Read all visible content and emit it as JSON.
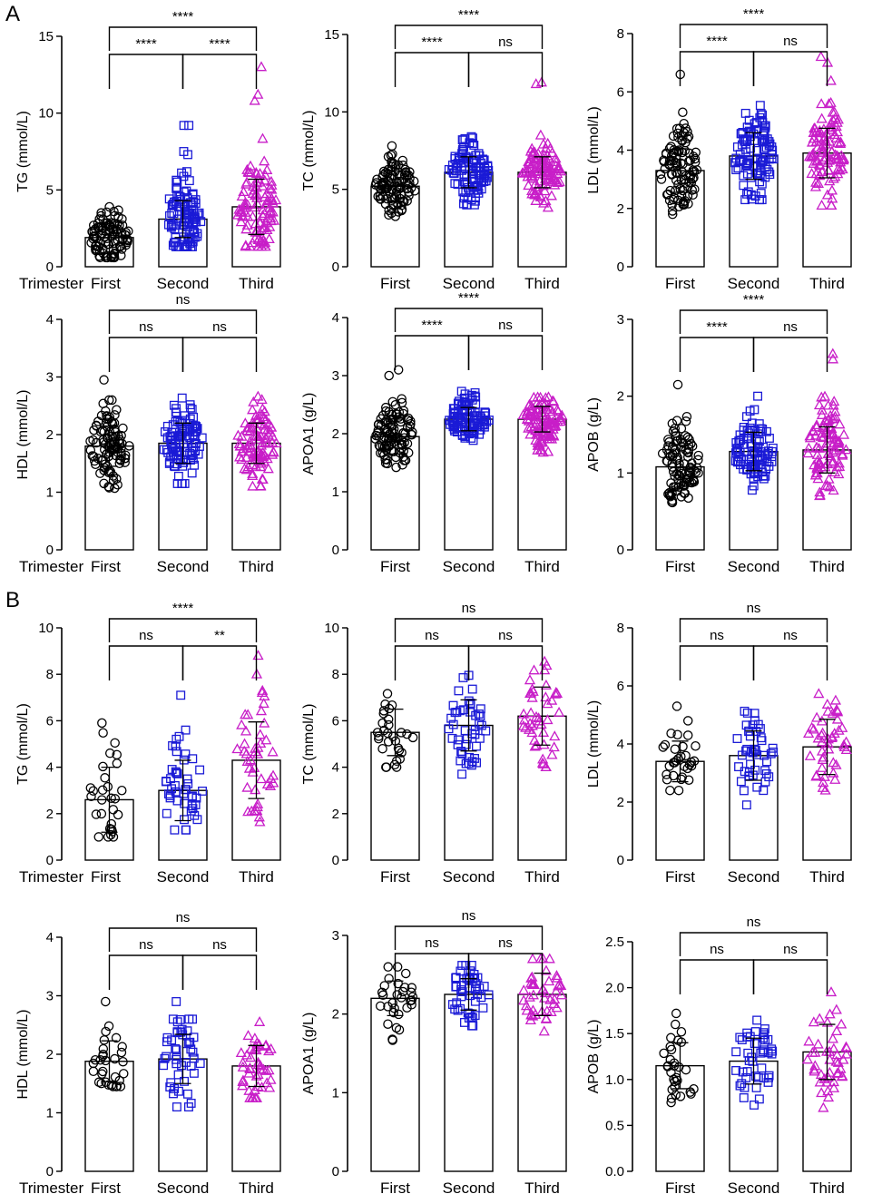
{
  "panels": [
    "A",
    "B"
  ],
  "colors": {
    "first": "#000000",
    "second": "#1a1ad6",
    "third": "#c81ec8",
    "axis": "#000000",
    "bar_fill": "#ffffff"
  },
  "chart_data": [
    {
      "type": "bar",
      "panel": "A",
      "title": "",
      "ylabel": "TG (mmol/L)",
      "ylim": [
        0,
        15
      ],
      "yticks": [
        0,
        5,
        10,
        15
      ],
      "xlabel": "Trimester",
      "categories": [
        "First",
        "Second",
        "Third"
      ],
      "values": [
        1.9,
        3.1,
        3.9
      ],
      "sd": [
        1.0,
        1.2,
        1.8
      ],
      "n": [
        100,
        100,
        100
      ],
      "range_min": [
        0.6,
        1.3,
        1.3
      ],
      "range_max": [
        6.0,
        9.3,
        13.0
      ],
      "outliers": [
        [],
        [
          9.2,
          9.2,
          7.5,
          7.3
        ],
        [
          13.0,
          11.2,
          10.8
        ]
      ],
      "markers": [
        "circle",
        "square",
        "triangle"
      ],
      "brackets": [
        {
          "from": 0,
          "to": 1,
          "label": "****",
          "level": 0
        },
        {
          "from": 1,
          "to": 2,
          "label": "****",
          "level": 0
        },
        {
          "from": 0,
          "to": 2,
          "label": "****",
          "level": 1
        }
      ]
    },
    {
      "type": "bar",
      "panel": "A",
      "title": "",
      "ylabel": "TC (mmol/L)",
      "ylim": [
        0,
        15
      ],
      "yticks": [
        0,
        5,
        10,
        15
      ],
      "xlabel": "",
      "categories": [
        "First",
        "Second",
        "Third"
      ],
      "values": [
        5.2,
        6.1,
        6.1
      ],
      "sd": [
        1.0,
        1.0,
        1.0
      ],
      "n": [
        100,
        100,
        100
      ],
      "range_min": [
        2.9,
        4.0,
        3.7
      ],
      "range_max": [
        9.2,
        8.9,
        10.2
      ],
      "outliers": [
        [],
        [],
        [
          11.9,
          11.8
        ]
      ],
      "markers": [
        "circle",
        "square",
        "triangle"
      ],
      "brackets": [
        {
          "from": 0,
          "to": 1,
          "label": "****",
          "level": 0
        },
        {
          "from": 1,
          "to": 2,
          "label": "ns",
          "level": 0
        },
        {
          "from": 0,
          "to": 2,
          "label": "****",
          "level": 1
        }
      ]
    },
    {
      "type": "bar",
      "panel": "A",
      "title": "",
      "ylabel": "LDL (mmol/L)",
      "ylim": [
        0,
        8
      ],
      "yticks": [
        0,
        2,
        4,
        6,
        8
      ],
      "xlabel": "",
      "categories": [
        "First",
        "Second",
        "Third"
      ],
      "values": [
        3.3,
        3.8,
        3.9
      ],
      "sd": [
        0.75,
        0.8,
        0.85
      ],
      "n": [
        100,
        100,
        100
      ],
      "range_min": [
        1.8,
        2.3,
        2.1
      ],
      "range_max": [
        5.3,
        5.9,
        6.5
      ],
      "outliers": [
        [
          6.6
        ],
        [],
        [
          7.2,
          7.0
        ]
      ],
      "markers": [
        "circle",
        "square",
        "triangle"
      ],
      "brackets": [
        {
          "from": 0,
          "to": 1,
          "label": "****",
          "level": 0
        },
        {
          "from": 1,
          "to": 2,
          "label": "ns",
          "level": 0
        },
        {
          "from": 0,
          "to": 2,
          "label": "****",
          "level": 1
        }
      ]
    },
    {
      "type": "bar",
      "panel": "A",
      "title": "",
      "ylabel": "HDL (mmol/L)",
      "ylim": [
        0,
        4
      ],
      "yticks": [
        0,
        1,
        2,
        3,
        4
      ],
      "xlabel": "Trimester",
      "categories": [
        "First",
        "Second",
        "Third"
      ],
      "values": [
        1.8,
        1.85,
        1.85
      ],
      "sd": [
        0.35,
        0.35,
        0.35
      ],
      "n": [
        100,
        100,
        100
      ],
      "range_min": [
        0.95,
        1.15,
        1.1
      ],
      "range_max": [
        2.6,
        2.65,
        2.95
      ],
      "outliers": [
        [
          2.95
        ],
        [],
        []
      ],
      "markers": [
        "circle",
        "square",
        "triangle"
      ],
      "brackets": [
        {
          "from": 0,
          "to": 1,
          "label": "ns",
          "level": 0
        },
        {
          "from": 1,
          "to": 2,
          "label": "ns",
          "level": 0
        },
        {
          "from": 0,
          "to": 2,
          "label": "ns",
          "level": 1
        }
      ]
    },
    {
      "type": "bar",
      "panel": "A",
      "title": "",
      "ylabel": "APOA1 (g/L)",
      "ylim": [
        0,
        4
      ],
      "yticks": [
        0,
        1,
        2,
        3,
        4
      ],
      "xlabel": "",
      "categories": [
        "First",
        "Second",
        "Third"
      ],
      "values": [
        1.95,
        2.25,
        2.25
      ],
      "sd": [
        0.3,
        0.2,
        0.22
      ],
      "n": [
        100,
        100,
        100
      ],
      "range_min": [
        1.05,
        1.45,
        1.3
      ],
      "range_max": [
        2.6,
        2.75,
        2.8
      ],
      "outliers": [
        [
          3.1,
          3.0
        ],
        [],
        []
      ],
      "markers": [
        "circle",
        "square",
        "triangle"
      ],
      "brackets": [
        {
          "from": 0,
          "to": 1,
          "label": "****",
          "level": 0
        },
        {
          "from": 1,
          "to": 2,
          "label": "ns",
          "level": 0
        },
        {
          "from": 0,
          "to": 2,
          "label": "****",
          "level": 1
        }
      ]
    },
    {
      "type": "bar",
      "panel": "A",
      "title": "",
      "ylabel": "APOB (g/L)",
      "ylim": [
        0,
        3
      ],
      "yticks": [
        0,
        1,
        2,
        3
      ],
      "xlabel": "",
      "categories": [
        "First",
        "Second",
        "Third"
      ],
      "values": [
        1.08,
        1.28,
        1.3
      ],
      "sd": [
        0.28,
        0.25,
        0.3
      ],
      "n": [
        100,
        100,
        100
      ],
      "range_min": [
        0.55,
        0.72,
        0.7
      ],
      "range_max": [
        1.9,
        2.0,
        2.3
      ],
      "outliers": [
        [
          2.15
        ],
        [],
        [
          2.55,
          2.48
        ]
      ],
      "markers": [
        "circle",
        "square",
        "triangle"
      ],
      "brackets": [
        {
          "from": 0,
          "to": 1,
          "label": "****",
          "level": 0
        },
        {
          "from": 1,
          "to": 2,
          "label": "ns",
          "level": 0
        },
        {
          "from": 0,
          "to": 2,
          "label": "****",
          "level": 1
        }
      ]
    },
    {
      "type": "bar",
      "panel": "B",
      "title": "",
      "ylabel": "TG (mmol/L)",
      "ylim": [
        0,
        10
      ],
      "yticks": [
        0,
        2,
        4,
        6,
        8,
        10
      ],
      "xlabel": "Trimester",
      "categories": [
        "First",
        "Second",
        "Third"
      ],
      "values": [
        2.6,
        3.0,
        4.3
      ],
      "sd": [
        1.4,
        1.3,
        1.65
      ],
      "n": [
        30,
        45,
        45
      ],
      "range_min": [
        1.0,
        1.3,
        1.6
      ],
      "range_max": [
        6.6,
        5.6,
        8.0
      ],
      "outliers": [
        [],
        [
          7.1
        ],
        [
          8.8
        ]
      ],
      "markers": [
        "circle",
        "square",
        "triangle"
      ],
      "brackets": [
        {
          "from": 0,
          "to": 1,
          "label": "ns",
          "level": 0
        },
        {
          "from": 1,
          "to": 2,
          "label": "**",
          "level": 0
        },
        {
          "from": 0,
          "to": 2,
          "label": "****",
          "level": 1
        }
      ]
    },
    {
      "type": "bar",
      "panel": "B",
      "title": "",
      "ylabel": "TC (mmol/L)",
      "ylim": [
        0,
        10
      ],
      "yticks": [
        0,
        2,
        4,
        6,
        8,
        10
      ],
      "xlabel": "",
      "categories": [
        "First",
        "Second",
        "Third"
      ],
      "values": [
        5.5,
        5.8,
        6.2
      ],
      "sd": [
        1.0,
        1.1,
        1.25
      ],
      "n": [
        30,
        45,
        45
      ],
      "range_min": [
        4.0,
        3.7,
        4.0
      ],
      "range_max": [
        7.6,
        8.1,
        9.0
      ],
      "outliers": [
        [],
        [],
        []
      ],
      "markers": [
        "circle",
        "square",
        "triangle"
      ],
      "brackets": [
        {
          "from": 0,
          "to": 1,
          "label": "ns",
          "level": 0
        },
        {
          "from": 1,
          "to": 2,
          "label": "ns",
          "level": 0
        },
        {
          "from": 0,
          "to": 2,
          "label": "ns",
          "level": 1
        }
      ]
    },
    {
      "type": "bar",
      "panel": "B",
      "title": "",
      "ylabel": "LDL (mmol/L)",
      "ylim": [
        0,
        8
      ],
      "yticks": [
        0,
        2,
        4,
        6,
        8
      ],
      "xlabel": "",
      "categories": [
        "First",
        "Second",
        "Third"
      ],
      "values": [
        3.4,
        3.6,
        3.9
      ],
      "sd": [
        0.7,
        0.85,
        0.95
      ],
      "n": [
        30,
        45,
        45
      ],
      "range_min": [
        2.4,
        1.9,
        2.4
      ],
      "range_max": [
        4.8,
        5.4,
        6.1
      ],
      "outliers": [
        [
          5.3
        ],
        [],
        []
      ],
      "markers": [
        "circle",
        "square",
        "triangle"
      ],
      "brackets": [
        {
          "from": 0,
          "to": 1,
          "label": "ns",
          "level": 0
        },
        {
          "from": 1,
          "to": 2,
          "label": "ns",
          "level": 0
        },
        {
          "from": 0,
          "to": 2,
          "label": "ns",
          "level": 1
        }
      ]
    },
    {
      "type": "bar",
      "panel": "B",
      "title": "",
      "ylabel": "HDL (mmol/L)",
      "ylim": [
        0,
        4
      ],
      "yticks": [
        0,
        1,
        2,
        3,
        4
      ],
      "xlabel": "Trimester",
      "categories": [
        "First",
        "Second",
        "Third"
      ],
      "values": [
        1.88,
        1.92,
        1.8
      ],
      "sd": [
        0.35,
        0.42,
        0.35
      ],
      "n": [
        30,
        45,
        45
      ],
      "range_min": [
        1.45,
        1.1,
        1.25
      ],
      "range_max": [
        2.5,
        2.6,
        2.55
      ],
      "outliers": [
        [
          2.9
        ],
        [
          2.9
        ],
        []
      ],
      "markers": [
        "circle",
        "square",
        "triangle"
      ],
      "brackets": [
        {
          "from": 0,
          "to": 1,
          "label": "ns",
          "level": 0
        },
        {
          "from": 1,
          "to": 2,
          "label": "ns",
          "level": 0
        },
        {
          "from": 0,
          "to": 2,
          "label": "ns",
          "level": 1
        }
      ]
    },
    {
      "type": "bar",
      "panel": "B",
      "title": "",
      "ylabel": "APOA1 (g/L)",
      "ylim": [
        0,
        3
      ],
      "yticks": [
        0,
        1,
        2,
        3
      ],
      "xlabel": "",
      "categories": [
        "First",
        "Second",
        "Third"
      ],
      "values": [
        2.2,
        2.25,
        2.25
      ],
      "sd": [
        0.22,
        0.2,
        0.27
      ],
      "n": [
        30,
        45,
        45
      ],
      "range_min": [
        1.6,
        1.85,
        1.55
      ],
      "range_max": [
        2.6,
        2.62,
        2.7
      ],
      "outliers": [
        [],
        [],
        []
      ],
      "markers": [
        "circle",
        "square",
        "triangle"
      ],
      "brackets": [
        {
          "from": 0,
          "to": 1,
          "label": "ns",
          "level": 0
        },
        {
          "from": 1,
          "to": 2,
          "label": "ns",
          "level": 0
        },
        {
          "from": 0,
          "to": 2,
          "label": "ns",
          "level": 1
        }
      ]
    },
    {
      "type": "bar",
      "panel": "B",
      "title": "",
      "ylabel": "APOB (g/L)",
      "ylim": [
        0,
        2.5
      ],
      "yticks": [
        0.0,
        0.5,
        1.0,
        1.5,
        2.0,
        2.5
      ],
      "xlabel": "",
      "categories": [
        "First",
        "Second",
        "Third"
      ],
      "values": [
        1.15,
        1.2,
        1.3
      ],
      "sd": [
        0.25,
        0.25,
        0.3
      ],
      "n": [
        30,
        45,
        45
      ],
      "range_min": [
        0.75,
        0.62,
        0.55
      ],
      "range_max": [
        1.72,
        1.8,
        1.95
      ],
      "outliers": [
        [],
        [],
        []
      ],
      "markers": [
        "circle",
        "square",
        "triangle"
      ],
      "brackets": [
        {
          "from": 0,
          "to": 1,
          "label": "ns",
          "level": 0
        },
        {
          "from": 1,
          "to": 2,
          "label": "ns",
          "level": 0
        },
        {
          "from": 0,
          "to": 2,
          "label": "ns",
          "level": 1
        }
      ]
    }
  ]
}
